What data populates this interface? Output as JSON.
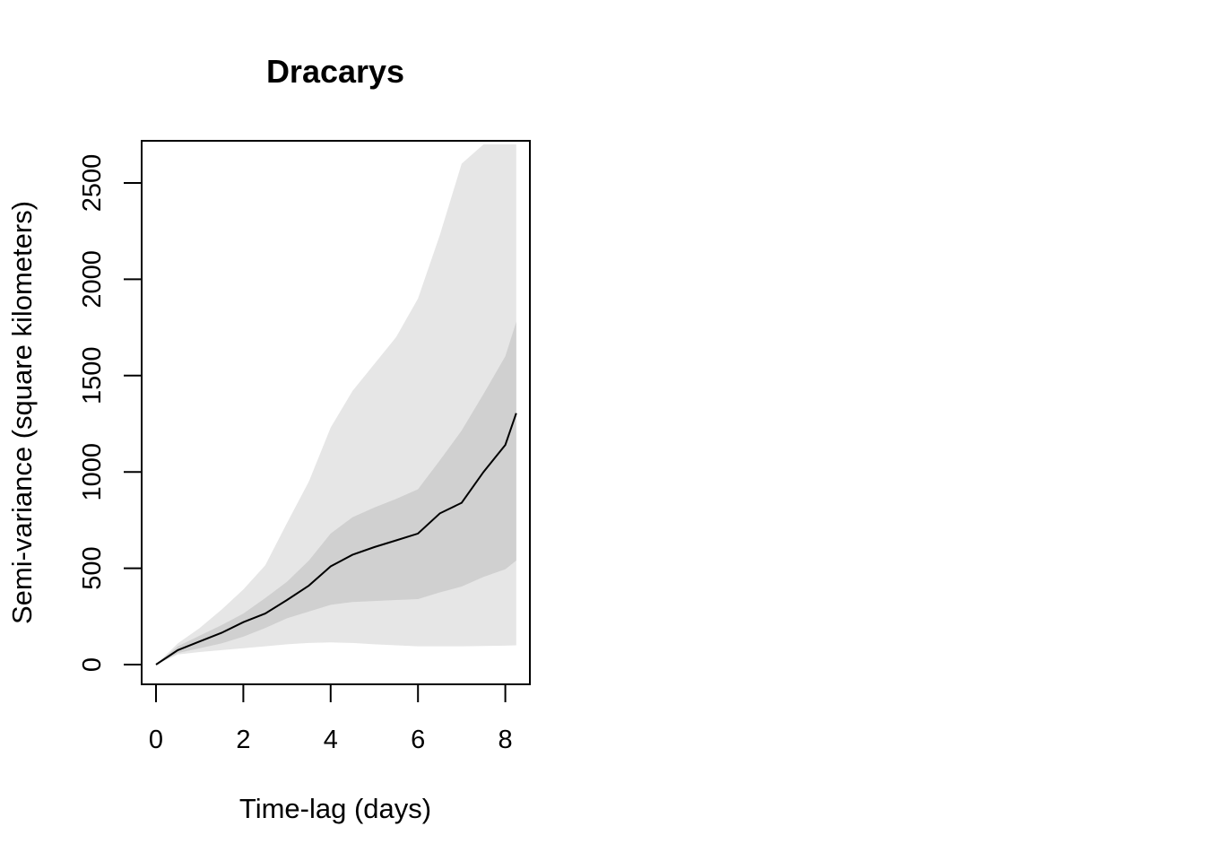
{
  "chart_data": {
    "type": "area",
    "title": "Dracarys",
    "xlabel": "Time-lag (days)",
    "ylabel": "Semi-variance (square kilometers)",
    "xlim": [
      0,
      8.25
    ],
    "ylim": [
      0,
      2700
    ],
    "x_ticks": [
      0,
      2,
      4,
      6,
      8
    ],
    "y_ticks": [
      0,
      500,
      1000,
      1500,
      2000,
      2500
    ],
    "grid": false,
    "legend": "none",
    "colors": {
      "outer_band": "#e6e6e6",
      "inner_band": "#d0d0d0",
      "line": "#000000"
    },
    "x": [
      0,
      0.5,
      1,
      1.5,
      2,
      2.5,
      3,
      3.5,
      4,
      4.5,
      5,
      5.5,
      6,
      6.5,
      7,
      7.5,
      8,
      8.25
    ],
    "series": [
      {
        "values": [
          0,
          75,
          120,
          165,
          220,
          265,
          335,
          410,
          510,
          570,
          610,
          645,
          680,
          785,
          840,
          1000,
          1140,
          1305
        ]
      }
    ],
    "inner_band": {
      "lower": [
        0,
        60,
        85,
        110,
        145,
        190,
        240,
        275,
        310,
        325,
        330,
        335,
        340,
        375,
        405,
        455,
        495,
        540
      ],
      "upper": [
        0,
        95,
        150,
        205,
        265,
        345,
        430,
        540,
        680,
        765,
        815,
        860,
        910,
        1060,
        1215,
        1405,
        1600,
        1780
      ]
    },
    "outer_band": {
      "lower": [
        0,
        52,
        65,
        75,
        85,
        95,
        105,
        112,
        115,
        112,
        105,
        100,
        95,
        95,
        95,
        97,
        98,
        100
      ],
      "upper": [
        0,
        110,
        190,
        285,
        390,
        515,
        735,
        950,
        1230,
        1420,
        1560,
        1700,
        1900,
        2230,
        2600,
        2700,
        2700,
        2700
      ]
    }
  }
}
